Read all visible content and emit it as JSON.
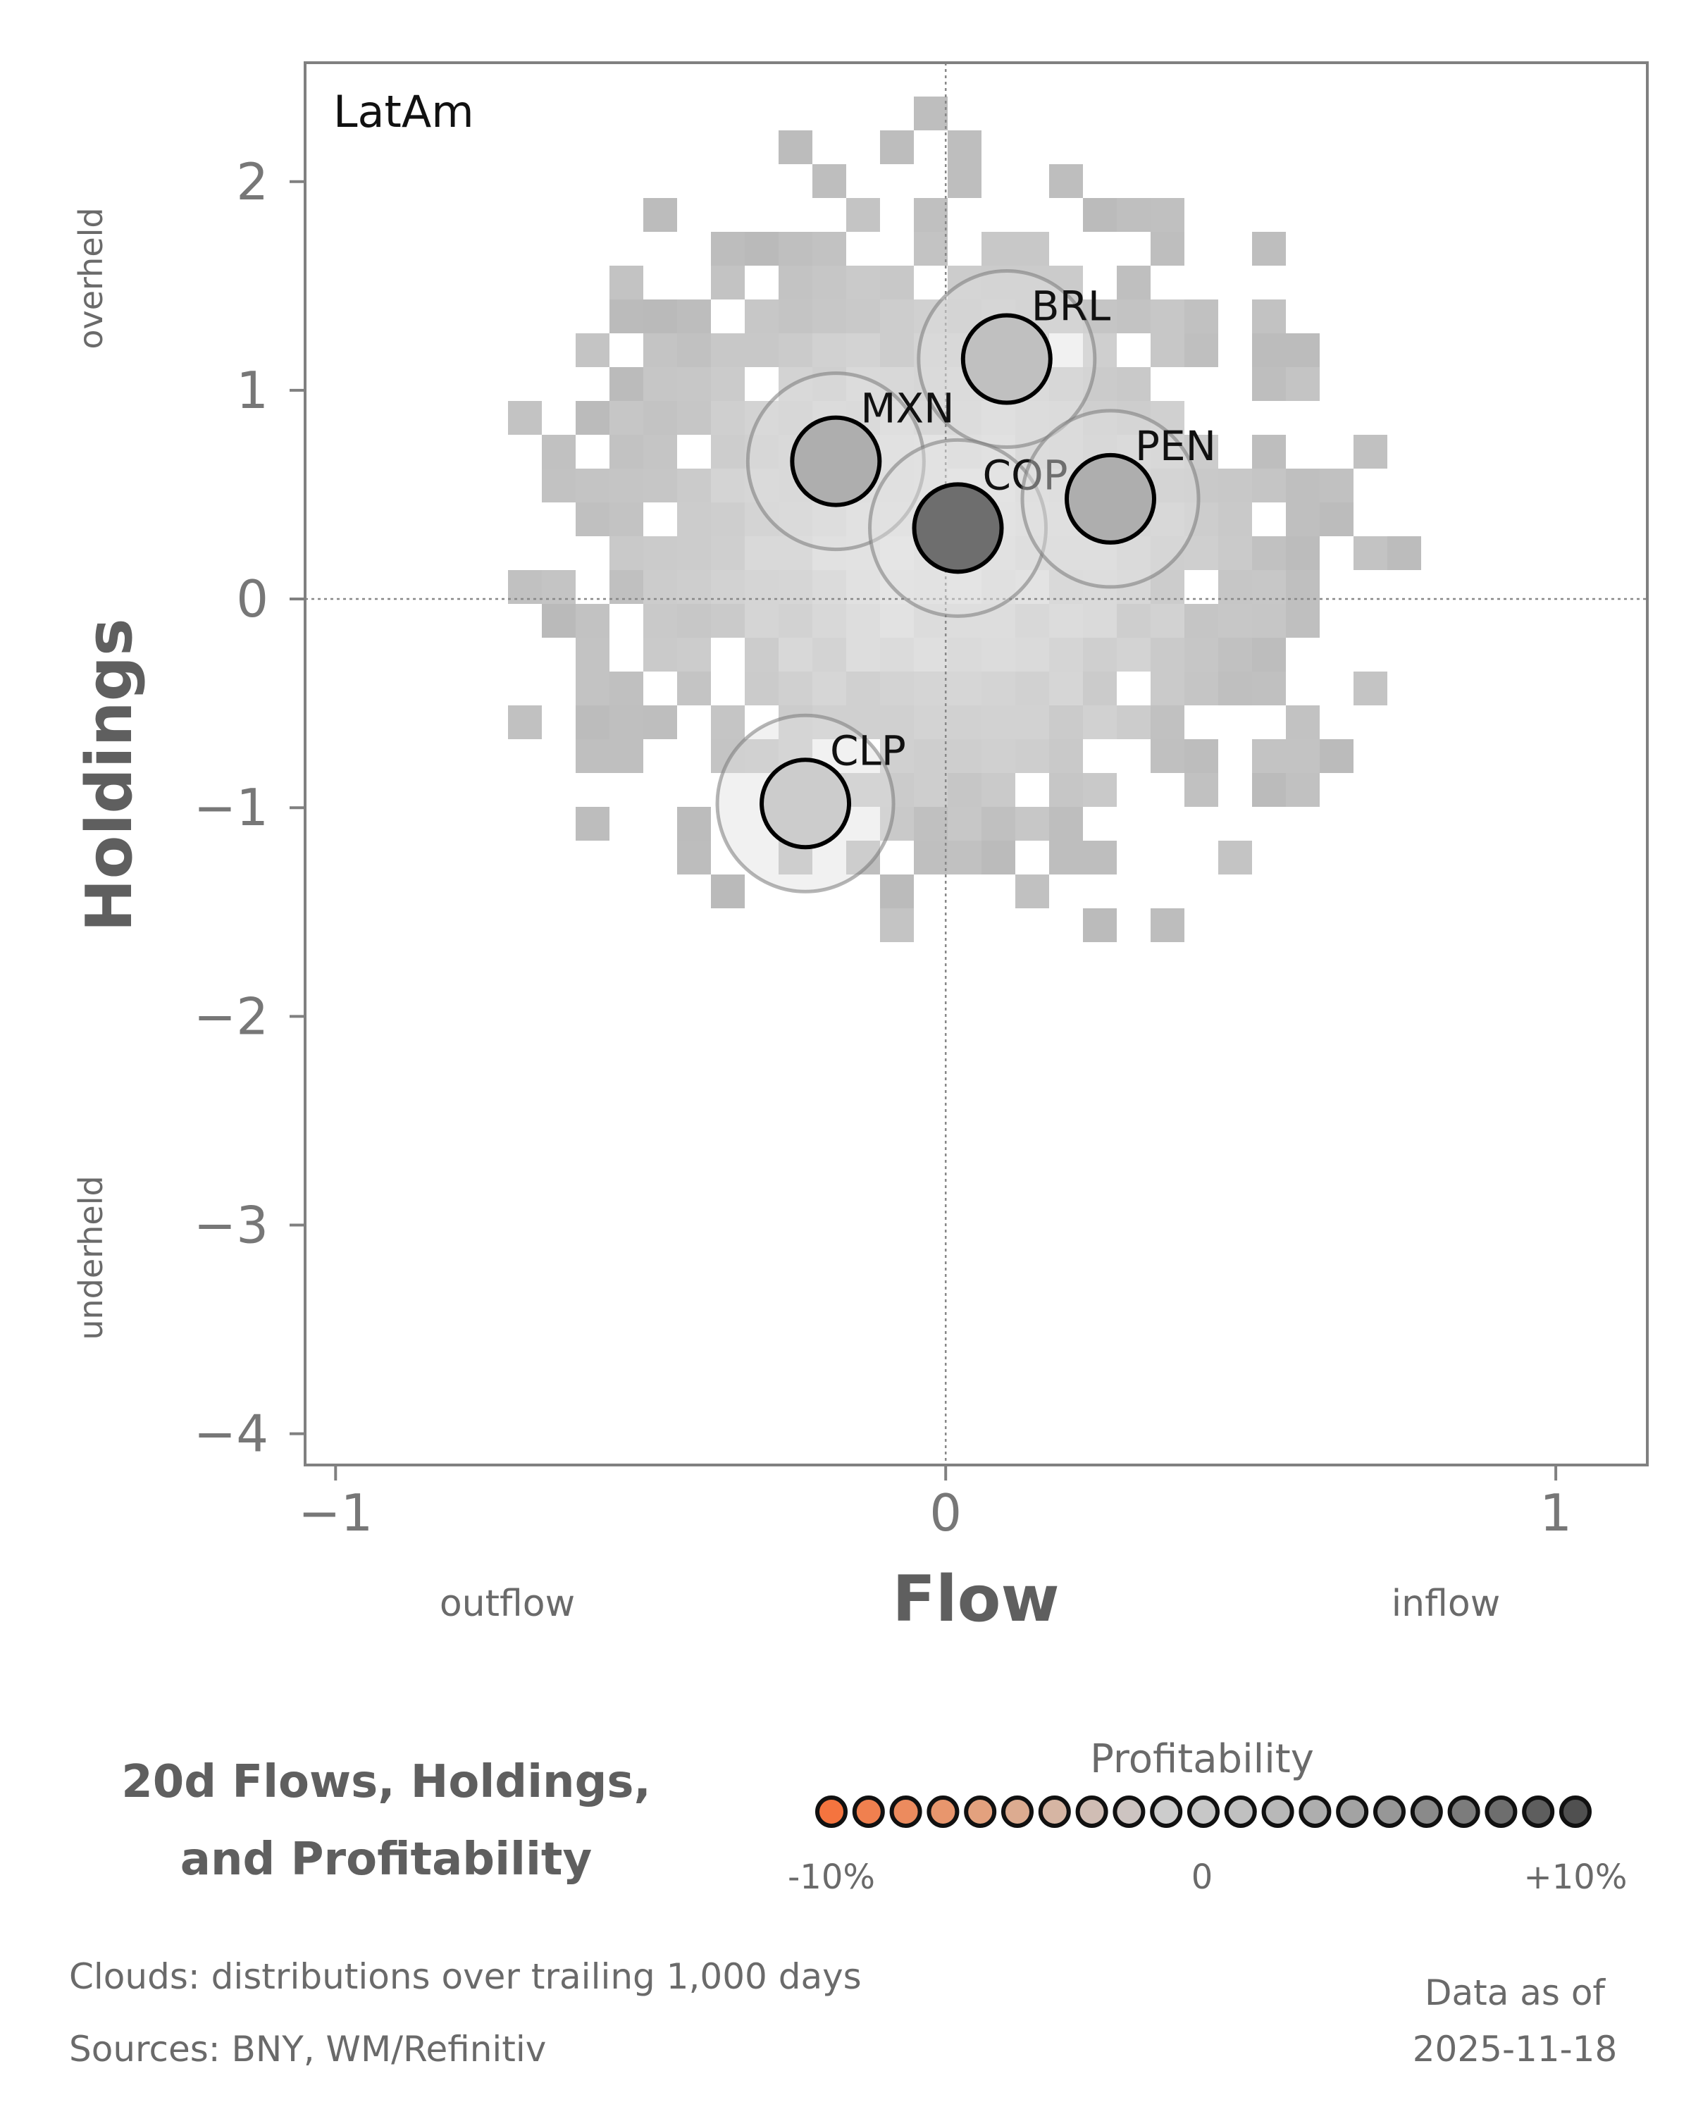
{
  "chart_data": {
    "type": "scatter",
    "panel_label": "LatAm",
    "xlabel": "Flow",
    "ylabel": "Holdings",
    "xlim": [
      -1.05,
      1.15
    ],
    "ylim": [
      -4.15,
      2.57
    ],
    "x_ticks": [
      {
        "value": -1,
        "label": "−1"
      },
      {
        "value": 0,
        "label": "0"
      },
      {
        "value": 1,
        "label": "1"
      }
    ],
    "y_ticks": [
      {
        "value": 2,
        "label": "2"
      },
      {
        "value": 1,
        "label": "1"
      },
      {
        "value": 0,
        "label": "0"
      },
      {
        "value": -1,
        "label": "−1"
      },
      {
        "value": -2,
        "label": "−2"
      },
      {
        "value": -3,
        "label": "−3"
      },
      {
        "value": -4,
        "label": "−4"
      }
    ],
    "x_side_labels": {
      "low": "outflow",
      "high": "inflow"
    },
    "y_side_labels": {
      "high": "overheld",
      "low": "underheld"
    },
    "reference_lines": {
      "x": 0,
      "y": 0
    },
    "grid": false,
    "background": "2D histogram clouds",
    "points": [
      {
        "label": "BRL",
        "x": 0.1,
        "y": 1.15,
        "profitability": 0.01
      },
      {
        "label": "MXN",
        "x": -0.18,
        "y": 0.66,
        "profitability": 0.03
      },
      {
        "label": "COP",
        "x": 0.02,
        "y": 0.34,
        "profitability": 0.08
      },
      {
        "label": "PEN",
        "x": 0.27,
        "y": 0.48,
        "profitability": 0.03
      },
      {
        "label": "CLP",
        "x": -0.23,
        "y": -0.98,
        "profitability": -0.01
      }
    ],
    "colorbar": {
      "title": "Profitability",
      "min_label": "-10%",
      "mid_label": "0",
      "max_label": "+10%",
      "steps": 21,
      "colors": [
        "#f4743f",
        "#f0804f",
        "#ec8b5e",
        "#e8966d",
        "#e3a17e",
        "#dcab90",
        "#d6b5a3",
        "#d0bdb4",
        "#cdc4c1",
        "#cccccc",
        "#c7c7c7",
        "#c0c0c0",
        "#b8b8b8",
        "#aeaeae",
        "#a3a3a3",
        "#979797",
        "#8a8a8a",
        "#7c7c7c",
        "#6e6e6e",
        "#5e5e5e",
        "#505050"
      ]
    },
    "title": [
      "20d Flows, Holdings,",
      "and Profitability"
    ]
  },
  "footnotes": {
    "clouds": "Clouds:  distributions over trailing 1,000 days",
    "sources": "Sources:  BNY, WM/Refinitiv",
    "asof_label": "Data as of",
    "asof_date": "2025-11-18"
  }
}
